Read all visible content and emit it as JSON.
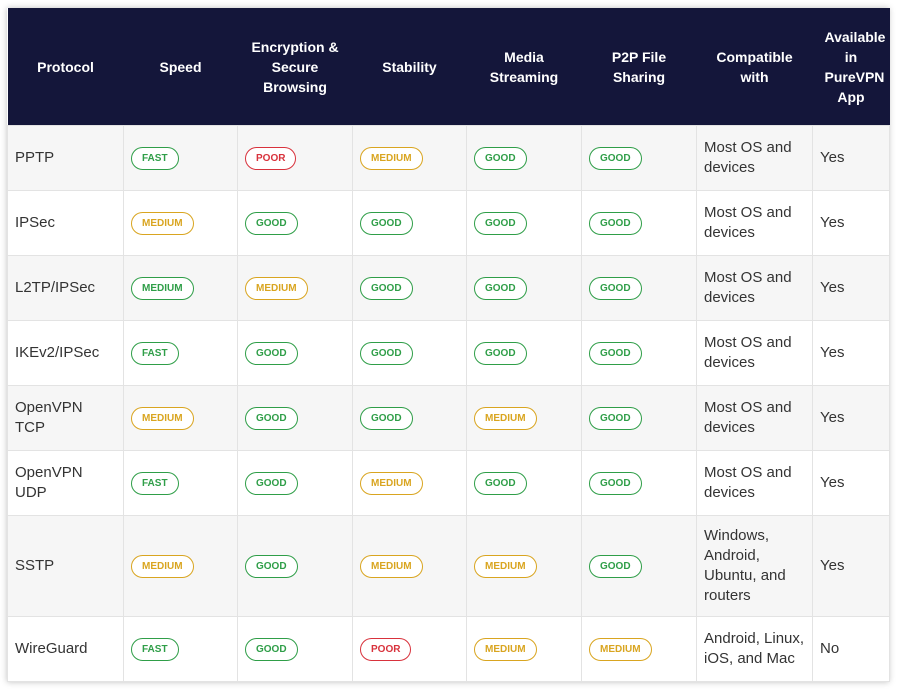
{
  "table": {
    "header": [
      "Protocol",
      "Speed",
      "Encryption & Secure Browsing",
      "Stability",
      "Media Streaming",
      "P2P File Sharing",
      "Compatible with",
      "Available in PureVPN App"
    ],
    "rows": [
      [
        "PPTP",
        {
          "text": "FAST",
          "color": "#2f9e48"
        },
        {
          "text": "POOR",
          "color": "#d8323c"
        },
        {
          "text": "MEDIUM",
          "color": "#d9a520"
        },
        {
          "text": "GOOD",
          "color": "#2f9e48"
        },
        {
          "text": "GOOD",
          "color": "#2f9e48"
        },
        "Most OS and devices",
        "Yes"
      ],
      [
        "IPSec",
        {
          "text": "MEDIUM",
          "color": "#d9a520"
        },
        {
          "text": "GOOD",
          "color": "#2f9e48"
        },
        {
          "text": "GOOD",
          "color": "#2f9e48"
        },
        {
          "text": "GOOD",
          "color": "#2f9e48"
        },
        {
          "text": "GOOD",
          "color": "#2f9e48"
        },
        "Most OS and devices",
        "Yes"
      ],
      [
        "L2TP/IPSec",
        {
          "text": "MEDIUM",
          "color": "#2f9e48"
        },
        {
          "text": "MEDIUM",
          "color": "#d9a520"
        },
        {
          "text": "GOOD",
          "color": "#2f9e48"
        },
        {
          "text": "GOOD",
          "color": "#2f9e48"
        },
        {
          "text": "GOOD",
          "color": "#2f9e48"
        },
        "Most OS and devices",
        "Yes"
      ],
      [
        "IKEv2/IPSec",
        {
          "text": "FAST",
          "color": "#2f9e48"
        },
        {
          "text": "GOOD",
          "color": "#2f9e48"
        },
        {
          "text": "GOOD",
          "color": "#2f9e48"
        },
        {
          "text": "GOOD",
          "color": "#2f9e48"
        },
        {
          "text": "GOOD",
          "color": "#2f9e48"
        },
        "Most OS and devices",
        "Yes"
      ],
      [
        "OpenVPN TCP",
        {
          "text": "MEDIUM",
          "color": "#d9a520"
        },
        {
          "text": "GOOD",
          "color": "#2f9e48"
        },
        {
          "text": "GOOD",
          "color": "#2f9e48"
        },
        {
          "text": "MEDIUM",
          "color": "#d9a520"
        },
        {
          "text": "GOOD",
          "color": "#2f9e48"
        },
        "Most OS and devices",
        "Yes"
      ],
      [
        "OpenVPN UDP",
        {
          "text": "FAST",
          "color": "#2f9e48"
        },
        {
          "text": "GOOD",
          "color": "#2f9e48"
        },
        {
          "text": "MEDIUM",
          "color": "#d9a520"
        },
        {
          "text": "GOOD",
          "color": "#2f9e48"
        },
        {
          "text": "GOOD",
          "color": "#2f9e48"
        },
        "Most OS and devices",
        "Yes"
      ],
      [
        "SSTP",
        {
          "text": "MEDIUM",
          "color": "#d9a520"
        },
        {
          "text": "GOOD",
          "color": "#2f9e48"
        },
        {
          "text": "MEDIUM",
          "color": "#d9a520"
        },
        {
          "text": "MEDIUM",
          "color": "#d9a520"
        },
        {
          "text": "GOOD",
          "color": "#2f9e48"
        },
        "Windows, Android, Ubuntu, and routers",
        "Yes"
      ],
      [
        "WireGuard",
        {
          "text": "FAST",
          "color": "#2f9e48"
        },
        {
          "text": "GOOD",
          "color": "#2f9e48"
        },
        {
          "text": "POOR",
          "color": "#d8323c"
        },
        {
          "text": "MEDIUM",
          "color": "#d9a520"
        },
        {
          "text": "MEDIUM",
          "color": "#d9a520"
        },
        "Android, Linux, iOS, and Mac",
        "No"
      ]
    ]
  }
}
